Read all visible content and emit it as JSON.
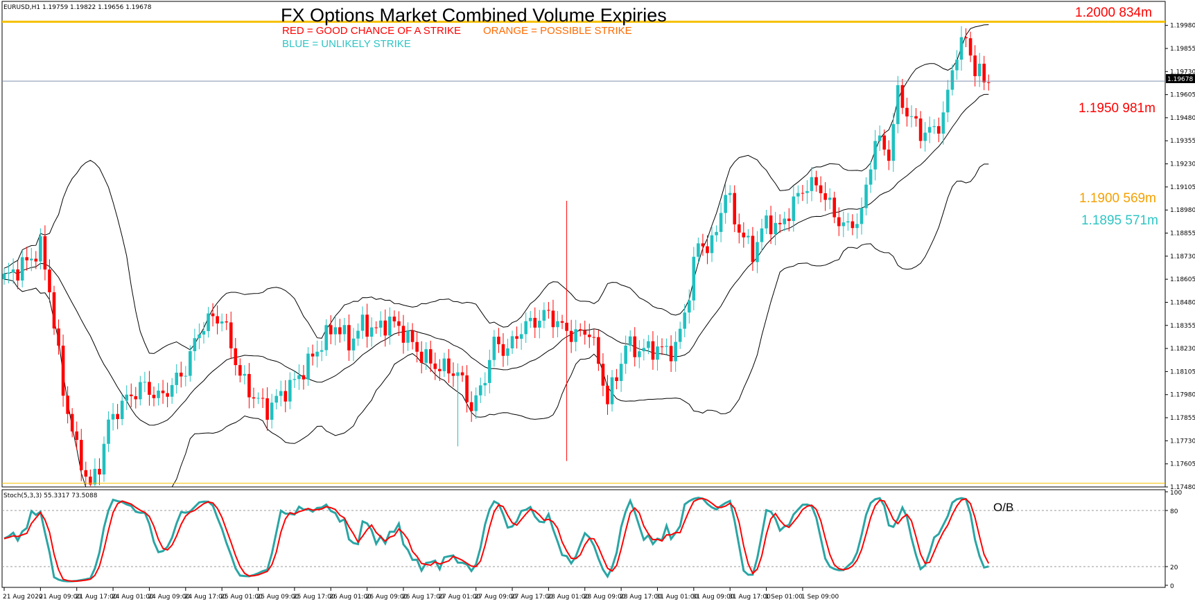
{
  "window": {
    "symbol_info": "EURUSD,H1  1.19759 1.19822 1.19656 1.19678",
    "title": "FX Options Market Combined Volume Expiries",
    "legend_red": "RED = GOOD CHANCE OF A STRIKE",
    "legend_orange": "ORANGE = POSSIBLE STRIKE",
    "legend_blue": "BLUE = UNLIKELY STRIKE",
    "current_price": "1.19678",
    "stoch_label": "Stoch(5,3,3) 55.3317 73.5088",
    "ob_label": "O/B"
  },
  "colors": {
    "red": "#ff0000",
    "orange": "#ff6a00",
    "blue": "#2ec4c4",
    "gold_line": "#f5c000",
    "bull": "#20c0c0",
    "bear": "#ff0000",
    "stoch_main": "#2aa5a5",
    "stoch_signal": "#ff0000"
  },
  "chart_data": {
    "type": "candlestick",
    "symbol": "EURUSD",
    "timeframe": "H1",
    "ylim": [
      1.1748,
      1.2011
    ],
    "price_ticks": [
      "1.19980",
      "1.19855",
      "1.19730",
      "1.19605",
      "1.19480",
      "1.19355",
      "1.19230",
      "1.19105",
      "1.18980",
      "1.18855",
      "1.18730",
      "1.18605",
      "1.18480",
      "1.18355",
      "1.18230",
      "1.18105",
      "1.17980",
      "1.17855",
      "1.17730",
      "1.17605",
      "1.17480"
    ],
    "time_ticks": [
      "21 Aug 2020",
      "21 Aug 09:00",
      "21 Aug 17:00",
      "24 Aug 01:00",
      "24 Aug 09:00",
      "24 Aug 17:00",
      "25 Aug 01:00",
      "25 Aug 09:00",
      "25 Aug 17:00",
      "26 Aug 01:00",
      "26 Aug 09:00",
      "26 Aug 17:00",
      "27 Aug 01:00",
      "27 Aug 09:00",
      "27 Aug 17:00",
      "28 Aug 01:00",
      "28 Aug 09:00",
      "28 Aug 17:00",
      "31 Aug 01:00",
      "31 Aug 09:00",
      "31 Aug 17:00",
      "1 Sep 01:00",
      "1 Sep 09:00"
    ],
    "option_levels": [
      {
        "label": "1.2000 834m",
        "price": 1.2,
        "category": "red"
      },
      {
        "label": "1.1950 981m",
        "price": 1.195,
        "category": "red"
      },
      {
        "label": "1.1900 569m",
        "price": 1.19,
        "category": "orange"
      },
      {
        "label": "1.1895 571m",
        "price": 1.1895,
        "category": "blue"
      }
    ],
    "horizontal_lines": [
      {
        "price": 1.2,
        "style": "gold"
      },
      {
        "price": 1.19678,
        "style": "current"
      },
      {
        "price": 1.175,
        "style": "gold-thin"
      }
    ],
    "close_anchors": [
      [
        0,
        1.1861
      ],
      [
        3,
        1.1866
      ],
      [
        6,
        1.1872
      ],
      [
        8,
        1.1878
      ],
      [
        10,
        1.1855
      ],
      [
        13,
        1.18
      ],
      [
        16,
        1.1768
      ],
      [
        19,
        1.1748
      ],
      [
        21,
        1.176
      ],
      [
        23,
        1.1782
      ],
      [
        25,
        1.179
      ],
      [
        28,
        1.1798
      ],
      [
        31,
        1.1803
      ],
      [
        34,
        1.1796
      ],
      [
        37,
        1.1803
      ],
      [
        40,
        1.1812
      ],
      [
        43,
        1.1833
      ],
      [
        46,
        1.184
      ],
      [
        48,
        1.1839
      ],
      [
        50,
        1.1825
      ],
      [
        52,
        1.1808
      ],
      [
        55,
        1.1797
      ],
      [
        58,
        1.179
      ],
      [
        61,
        1.1798
      ],
      [
        64,
        1.1805
      ],
      [
        67,
        1.1815
      ],
      [
        70,
        1.1826
      ],
      [
        73,
        1.1836
      ],
      [
        76,
        1.1826
      ],
      [
        79,
        1.1836
      ],
      [
        82,
        1.1833
      ],
      [
        85,
        1.1838
      ],
      [
        88,
        1.1832
      ],
      [
        91,
        1.1822
      ],
      [
        94,
        1.1815
      ],
      [
        97,
        1.1812
      ],
      [
        100,
        1.181
      ],
      [
        103,
        1.1791
      ],
      [
        105,
        1.18
      ],
      [
        108,
        1.1826
      ],
      [
        111,
        1.1822
      ],
      [
        114,
        1.1834
      ],
      [
        117,
        1.1838
      ],
      [
        120,
        1.1842
      ],
      [
        123,
        1.1834
      ],
      [
        126,
        1.183
      ],
      [
        129,
        1.1833
      ],
      [
        131,
        1.1815
      ],
      [
        133,
        1.1795
      ],
      [
        135,
        1.1808
      ],
      [
        137,
        1.1825
      ],
      [
        140,
        1.1822
      ],
      [
        143,
        1.1823
      ],
      [
        146,
        1.1822
      ],
      [
        148,
        1.1823
      ],
      [
        150,
        1.1842
      ],
      [
        153,
        1.188
      ],
      [
        156,
        1.1878
      ],
      [
        159,
        1.1908
      ],
      [
        162,
        1.1887
      ],
      [
        165,
        1.1875
      ],
      [
        168,
        1.1892
      ],
      [
        171,
        1.1888
      ],
      [
        174,
        1.1902
      ],
      [
        177,
        1.1912
      ],
      [
        180,
        1.191
      ],
      [
        183,
        1.1895
      ],
      [
        186,
        1.1888
      ],
      [
        189,
        1.1896
      ],
      [
        192,
        1.1937
      ],
      [
        195,
        1.1928
      ],
      [
        197,
        1.1961
      ],
      [
        199,
        1.1951
      ],
      [
        202,
        1.194
      ],
      [
        205,
        1.1941
      ],
      [
        207,
        1.1949
      ],
      [
        210,
        1.1985
      ],
      [
        212,
        1.199
      ],
      [
        214,
        1.1975
      ],
      [
        216,
        1.1968
      ]
    ],
    "indicators": {
      "bollinger_bands": {
        "period": 20
      },
      "stochastic": {
        "name": "Stoch(5,3,3)",
        "main": 55.3317,
        "signal": 73.5088,
        "ylim": [
          0,
          100
        ],
        "levels": [
          20,
          80
        ],
        "axis_ticks": [
          "100",
          "80",
          "20",
          "0"
        ]
      }
    }
  }
}
